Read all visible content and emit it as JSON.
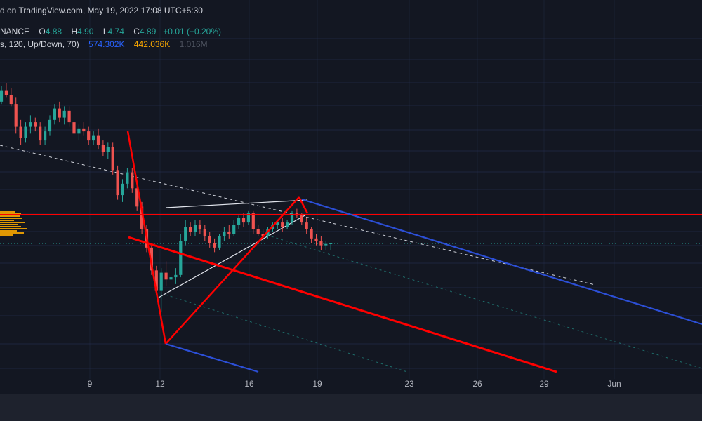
{
  "header": {
    "publish_line": "d on TradingView.com, May 19, 2022 17:08 UTC+5:30",
    "symbol_suffix": "NANCE",
    "ohlc": {
      "open_label": "O",
      "open": "4.88",
      "high_label": "H",
      "high": "4.90",
      "low_label": "L",
      "low": "4.74",
      "close_label": "C",
      "close": "4.89",
      "change": "+0.01 (+0.20%)"
    },
    "indicator": {
      "params": "s, 120, Up/Down, 70)",
      "up_volume": "574.302K",
      "down_volume": "442.036K",
      "total_volume": "1.016M"
    }
  },
  "colors": {
    "background": "#131722",
    "up_candle": "#26a69a",
    "down_candle": "#ef5350",
    "trend_red": "#ff0000",
    "channel_blue": "#2c4fd6",
    "volume_profile": "#f7a600",
    "grid": "#283155",
    "dotted_line": "#26a69a",
    "dashed_line": "#d1d4dc"
  },
  "chart_data": {
    "type": "candlestick",
    "x_axis_ticks": [
      "9",
      "12",
      "16",
      "19",
      "23",
      "26",
      "29",
      "Jun"
    ],
    "last_close": 4.89,
    "candles": [
      [
        0,
        8.0,
        8.35,
        7.95,
        8.25
      ],
      [
        1,
        8.25,
        8.4,
        8.1,
        8.15
      ],
      [
        2,
        8.15,
        8.3,
        7.9,
        7.95
      ],
      [
        3,
        7.95,
        8.1,
        7.3,
        7.45
      ],
      [
        4,
        7.45,
        7.6,
        7.05,
        7.2
      ],
      [
        5,
        7.2,
        7.55,
        7.1,
        7.45
      ],
      [
        6,
        7.45,
        7.7,
        7.3,
        7.55
      ],
      [
        7,
        7.55,
        7.65,
        7.35,
        7.45
      ],
      [
        8,
        7.45,
        7.55,
        7.05,
        7.15
      ],
      [
        9,
        7.15,
        7.45,
        7.05,
        7.35
      ],
      [
        10,
        7.35,
        7.7,
        7.25,
        7.6
      ],
      [
        11,
        7.6,
        7.95,
        7.5,
        7.85
      ],
      [
        12,
        7.85,
        8.0,
        7.55,
        7.65
      ],
      [
        13,
        7.65,
        7.9,
        7.5,
        7.8
      ],
      [
        14,
        7.8,
        7.9,
        7.45,
        7.55
      ],
      [
        15,
        7.55,
        7.65,
        7.2,
        7.3
      ],
      [
        16,
        7.3,
        7.5,
        7.15,
        7.4
      ],
      [
        17,
        7.4,
        7.55,
        7.25,
        7.35
      ],
      [
        18,
        7.35,
        7.45,
        7.05,
        7.15
      ],
      [
        19,
        7.15,
        7.35,
        7.05,
        7.25
      ],
      [
        20,
        7.25,
        7.4,
        6.95,
        7.05
      ],
      [
        21,
        7.05,
        7.15,
        6.8,
        6.9
      ],
      [
        22,
        6.9,
        7.1,
        6.75,
        7.0
      ],
      [
        23,
        7.0,
        7.1,
        6.4,
        6.5
      ],
      [
        24,
        6.5,
        6.6,
        5.85,
        5.95
      ],
      [
        25,
        5.95,
        6.3,
        5.8,
        6.2
      ],
      [
        26,
        6.2,
        6.55,
        6.1,
        6.45
      ],
      [
        27,
        6.45,
        6.55,
        6.0,
        6.1
      ],
      [
        28,
        6.1,
        6.2,
        5.6,
        5.7
      ],
      [
        29,
        5.7,
        5.8,
        5.1,
        5.2
      ],
      [
        30,
        5.2,
        5.3,
        4.7,
        4.8
      ],
      [
        31,
        4.8,
        4.9,
        4.2,
        4.3
      ],
      [
        32,
        4.3,
        4.4,
        3.75,
        3.85
      ],
      [
        33,
        3.85,
        4.35,
        3.4,
        4.25
      ],
      [
        34,
        4.25,
        4.5,
        3.95,
        4.1
      ],
      [
        35,
        4.1,
        4.3,
        3.85,
        4.15
      ],
      [
        36,
        4.15,
        4.35,
        4.0,
        4.2
      ],
      [
        37,
        4.2,
        5.1,
        4.15,
        4.95
      ],
      [
        38,
        4.95,
        5.4,
        4.85,
        5.25
      ],
      [
        39,
        5.25,
        5.35,
        5.05,
        5.15
      ],
      [
        40,
        5.15,
        5.4,
        5.05,
        5.3
      ],
      [
        41,
        5.3,
        5.4,
        5.1,
        5.2
      ],
      [
        42,
        5.2,
        5.3,
        4.95,
        5.05
      ],
      [
        43,
        5.05,
        5.15,
        4.8,
        4.9
      ],
      [
        44,
        4.9,
        5.0,
        4.7,
        4.8
      ],
      [
        45,
        4.8,
        5.1,
        4.75,
        5.05
      ],
      [
        46,
        5.05,
        5.25,
        4.95,
        5.15
      ],
      [
        47,
        5.15,
        5.3,
        5.0,
        5.1
      ],
      [
        48,
        5.1,
        5.4,
        5.05,
        5.3
      ],
      [
        49,
        5.3,
        5.5,
        5.2,
        5.45
      ],
      [
        50,
        5.45,
        5.55,
        5.25,
        5.35
      ],
      [
        51,
        5.35,
        5.6,
        5.3,
        5.55
      ],
      [
        52,
        5.55,
        5.6,
        5.1,
        5.2
      ],
      [
        53,
        5.2,
        5.3,
        5.05,
        5.1
      ],
      [
        54,
        5.1,
        5.2,
        4.95,
        5.05
      ],
      [
        55,
        5.05,
        5.25,
        5.0,
        5.2
      ],
      [
        56,
        5.2,
        5.35,
        5.15,
        5.3
      ],
      [
        57,
        5.3,
        5.4,
        5.2,
        5.35
      ],
      [
        58,
        5.35,
        5.45,
        5.15,
        5.25
      ],
      [
        59,
        5.25,
        5.4,
        5.2,
        5.35
      ],
      [
        60,
        5.35,
        5.6,
        5.3,
        5.55
      ],
      [
        61,
        5.55,
        5.65,
        5.45,
        5.5
      ],
      [
        62,
        5.5,
        5.55,
        5.3,
        5.35
      ],
      [
        63,
        5.35,
        5.45,
        5.1,
        5.2
      ],
      [
        64,
        5.2,
        5.25,
        4.9,
        5.0
      ],
      [
        65,
        5.0,
        5.1,
        4.85,
        4.95
      ],
      [
        66,
        4.95,
        5.05,
        4.75,
        4.85
      ],
      [
        67,
        4.85,
        4.95,
        4.75,
        4.88
      ],
      [
        68,
        4.88,
        4.9,
        4.74,
        4.89
      ]
    ]
  }
}
